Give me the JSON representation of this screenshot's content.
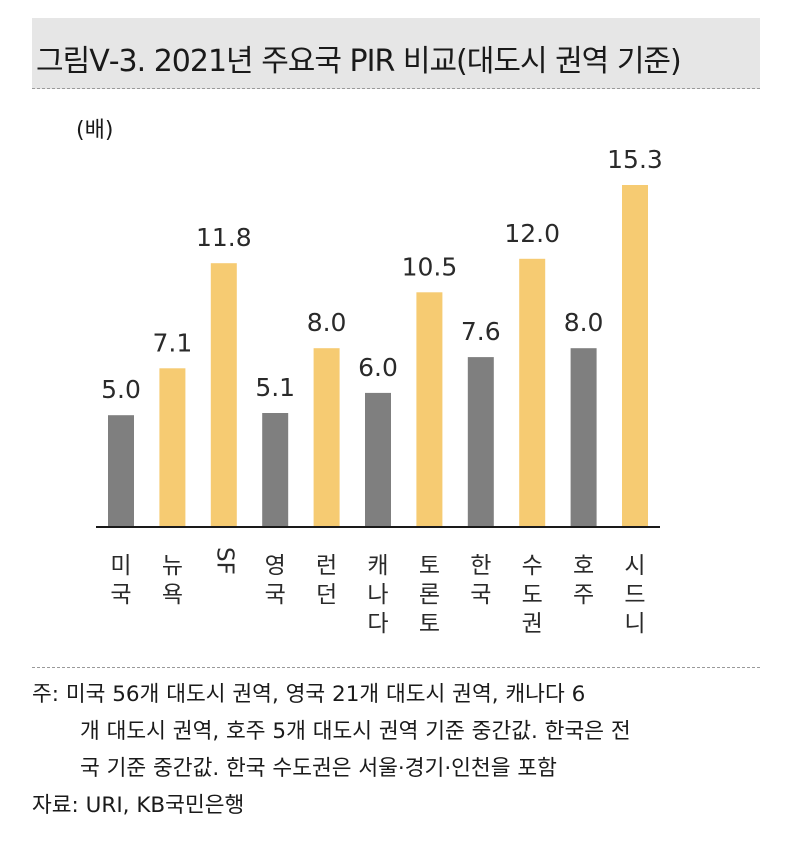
{
  "title": "그림Ⅴ-3. 2021년 주요국 PIR 비교(대도시 권역 기준)",
  "colors": {
    "gray": "#7f7f7f",
    "yellow": "#f6cb72",
    "axis": "#1a1a1a",
    "title_bg": "#e6e6e6"
  },
  "chart_data": {
    "type": "bar",
    "ylabel": "(배)",
    "categories": [
      "미국",
      "뉴욕",
      "SF",
      "영국",
      "런던",
      "캐나다",
      "토론토",
      "한국",
      "수도권",
      "호주",
      "시드니"
    ],
    "values": [
      5.0,
      7.1,
      11.8,
      5.1,
      8.0,
      6.0,
      10.5,
      7.6,
      12.0,
      8.0,
      15.3
    ],
    "value_labels": [
      "5.0",
      "7.1",
      "11.8",
      "5.1",
      "8.0",
      "6.0",
      "10.5",
      "7.6",
      "12.0",
      "8.0",
      "15.3"
    ],
    "bar_colors": [
      "gray",
      "yellow",
      "yellow",
      "gray",
      "yellow",
      "gray",
      "yellow",
      "gray",
      "yellow",
      "gray",
      "yellow"
    ],
    "ylim": [
      0,
      15.3
    ],
    "grid": false,
    "legend": "none"
  },
  "notes": {
    "lines": [
      "주: 미국 56개 대도시 권역, 영국 21개 대도시 권역, 캐나다 6",
      "개 대도시 권역, 호주 5개 대도시 권역 기준 중간값. 한국은 전",
      "국 기준 중간값. 한국 수도권은 서울·경기·인천을 포함"
    ],
    "source": "자료: URI, KB국민은행"
  }
}
